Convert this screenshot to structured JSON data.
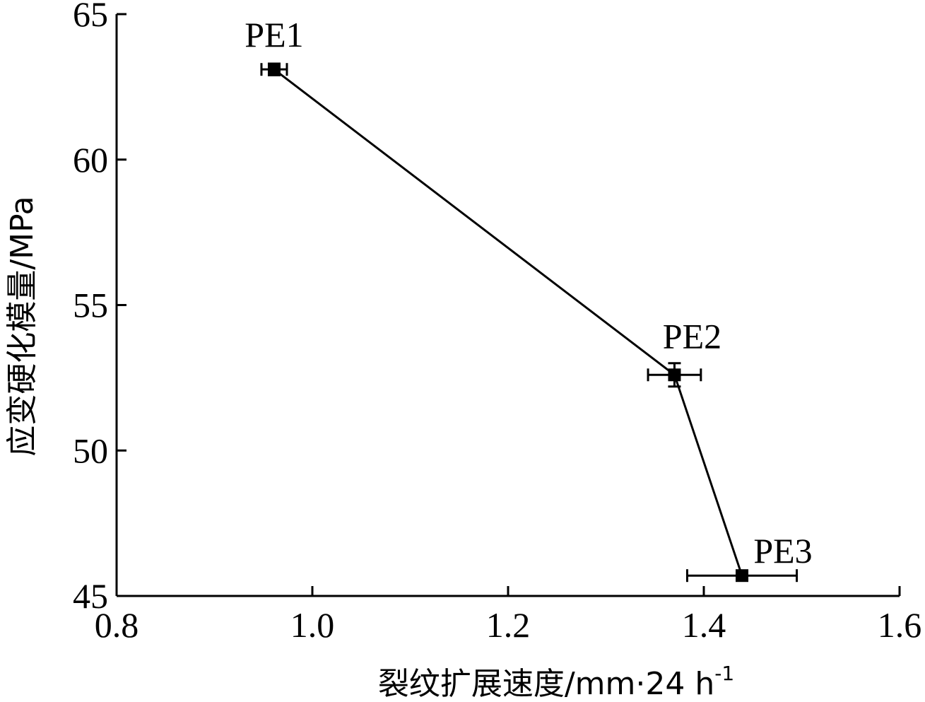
{
  "chart_data": {
    "type": "scatter",
    "xlabel": "裂纹扩展速度/mm·24 h",
    "xlabel_superscript": "-1",
    "ylabel": "应变硬化模量/MPa",
    "xlim": [
      0.8,
      1.6
    ],
    "ylim": [
      45,
      65
    ],
    "x_ticks": [
      "0.8",
      "1.0",
      "1.2",
      "1.4",
      "1.6"
    ],
    "y_ticks": [
      "45",
      "50",
      "55",
      "60",
      "65"
    ],
    "grid": false,
    "legend": "none",
    "series": [
      {
        "points": [
          {
            "label": "PE1",
            "x": 0.961,
            "y": 63.1,
            "x_err": 0.013,
            "y_err": 0.2
          },
          {
            "label": "PE2",
            "x": 1.37,
            "y": 52.6,
            "x_err": 0.027,
            "y_err": 0.4
          },
          {
            "label": "PE3",
            "x": 1.439,
            "y": 45.7,
            "x_err": 0.056,
            "y_err": 0.15
          }
        ]
      }
    ],
    "colors": {
      "line": "#000000",
      "marker": "#000000"
    }
  }
}
